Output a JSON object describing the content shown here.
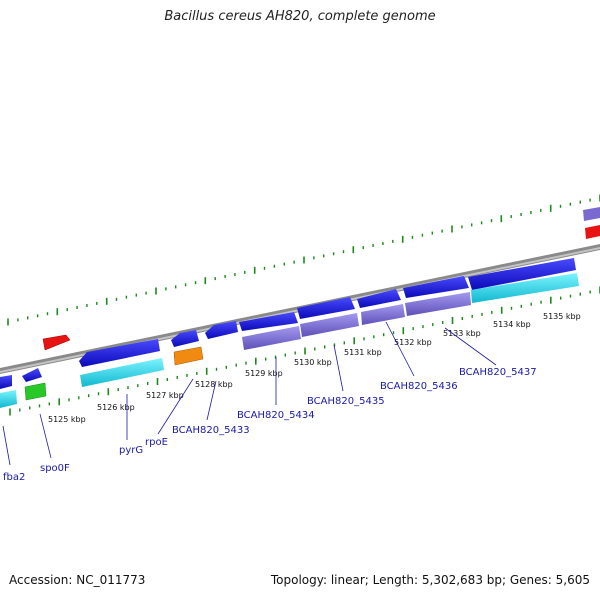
{
  "title": "Bacillus cereus AH820, complete genome",
  "footer": {
    "accession": "Accession: NC_011773",
    "summary": "Topology: linear; Length: 5,302,683 bp; Genes: 5,605"
  },
  "scale_labels": [
    "5125 kbp",
    "5126 kbp",
    "5127 kbp",
    "5128 kbp",
    "5129 kbp",
    "5130 kbp",
    "5131 kbp",
    "5132 kbp",
    "5133 kbp",
    "5134 kbp",
    "5135 kbp"
  ],
  "gene_labels": [
    "fba2",
    "spo0F",
    "pyrG",
    "rpoE",
    "BCAH820_5433",
    "BCAH820_5434",
    "BCAH820_5435",
    "BCAH820_5436",
    "BCAH820_5437"
  ],
  "colors": {
    "backbone": "#8a8a8a",
    "gene_blue": "#1414d8",
    "cds_cyan": "#19d8e8",
    "cds_purple": "#7a6ad0",
    "red": "#e81414",
    "orange": "#f08a10",
    "green": "#28c828",
    "tick_green": "#1a8a1a",
    "label_blue": "#1a1aa8"
  }
}
